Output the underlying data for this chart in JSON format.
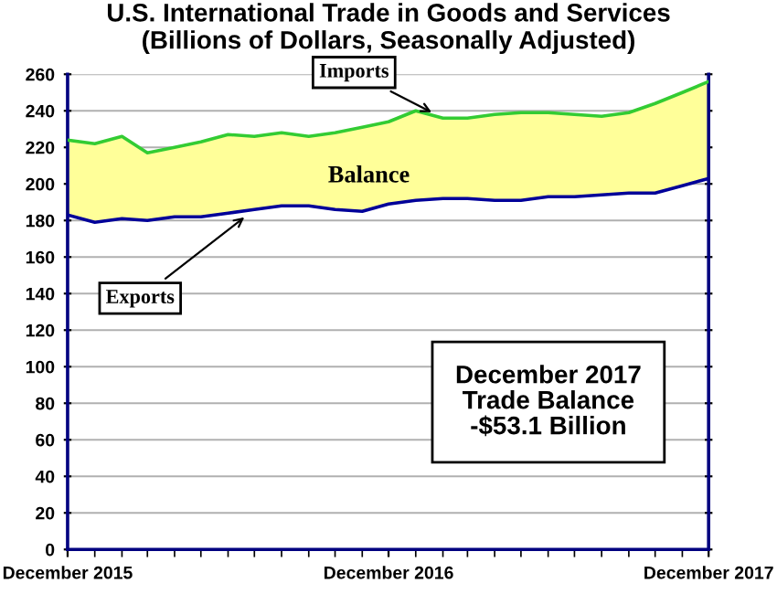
{
  "chart_data": {
    "type": "line",
    "title": "U.S. International Trade in Goods and Services\n(Billions of Dollars, Seasonally Adjusted)",
    "x": [
      "2015-12",
      "2016-01",
      "2016-02",
      "2016-03",
      "2016-04",
      "2016-05",
      "2016-06",
      "2016-07",
      "2016-08",
      "2016-09",
      "2016-10",
      "2016-11",
      "2016-12",
      "2017-01",
      "2017-02",
      "2017-03",
      "2017-04",
      "2017-05",
      "2017-06",
      "2017-07",
      "2017-08",
      "2017-09",
      "2017-10",
      "2017-11",
      "2017-12"
    ],
    "series": [
      {
        "type": "line",
        "color": "#33cc33",
        "values": [
          224,
          222,
          226,
          217,
          220,
          223,
          227,
          226,
          228,
          226,
          228,
          231,
          234,
          240,
          236,
          236,
          238,
          239,
          239,
          238,
          237,
          239,
          244,
          250,
          256
        ],
        "lower": [
          183,
          179,
          181,
          180,
          182,
          182,
          184,
          186,
          188,
          188,
          186,
          185,
          189,
          191,
          192,
          192,
          191,
          191,
          193,
          193,
          194,
          195,
          195,
          199,
          203
        ],
        "upper": [
          224,
          222,
          226,
          217,
          220,
          223,
          227,
          226,
          228,
          226,
          228,
          231,
          234,
          240,
          236,
          236,
          238,
          239,
          239,
          238,
          237,
          239,
          244,
          250,
          256
        ]
      },
      {
        "type": "line",
        "color": "#000099",
        "values": [
          183,
          179,
          181,
          180,
          182,
          182,
          184,
          186,
          188,
          188,
          186,
          185,
          189,
          191,
          192,
          192,
          191,
          191,
          193,
          193,
          194,
          195,
          195,
          199,
          203
        ]
      }
    ],
    "annotations": [
      {
        "text": "Imports",
        "x": "2017-02",
        "y": 236
      },
      "Balance",
      {
        "text": "Exports",
        "x": "2016-07",
        "y": 186
      },
      "December 2017\nTrade Balance\n-$53.1 Billion"
    ],
    "xlim": [
      "2015-12",
      "2017-12"
    ],
    "xticks": [
      {
        "value": "2015-12",
        "label": "December 2015"
      },
      {
        "value": "2016-12",
        "label": "December 2016"
      },
      {
        "value": "2017-12",
        "label": "December 2017"
      }
    ],
    "ylim": [
      0,
      260
    ],
    "yticks": [
      0,
      20,
      40,
      60,
      80,
      100,
      120,
      140,
      160,
      180,
      200,
      220,
      240,
      260
    ],
    "grid": "y",
    "legend": false
  }
}
